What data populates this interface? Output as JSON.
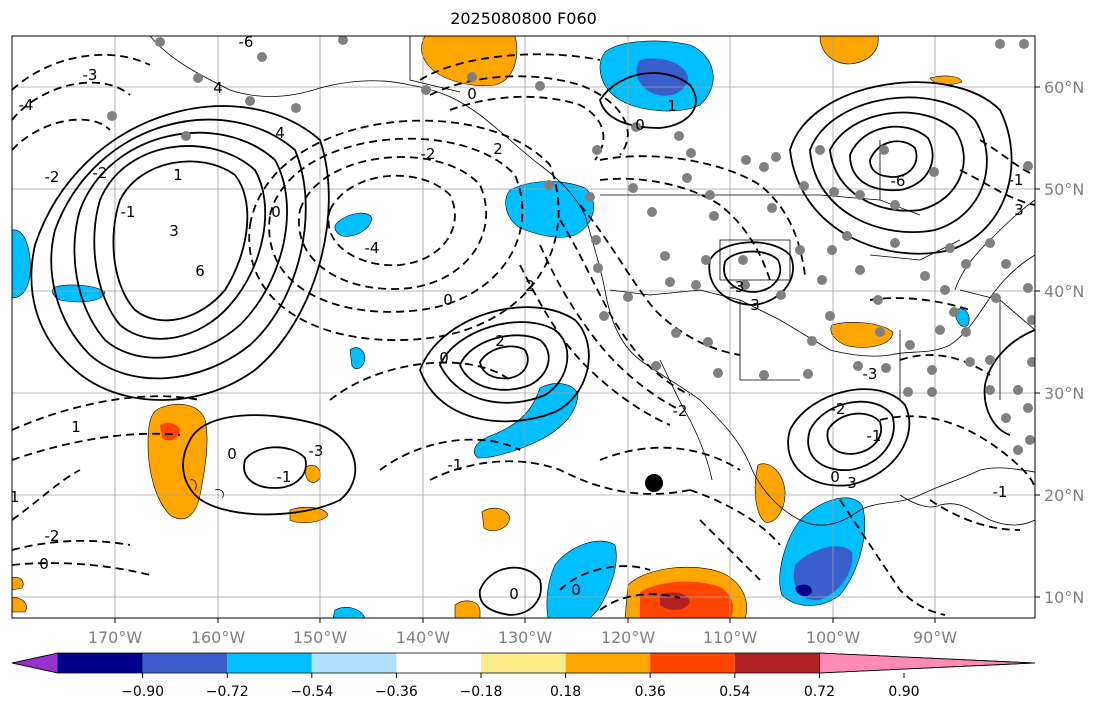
{
  "title": "2025080800 F060",
  "map": {
    "lon_range": [
      -180,
      -80
    ],
    "lat_range": [
      7.5,
      65
    ],
    "lon_labels": [
      "170°W",
      "160°W",
      "150°W",
      "140°W",
      "130°W",
      "120°W",
      "110°W",
      "100°W",
      "90°W"
    ],
    "lat_labels": [
      "60°N",
      "50°N",
      "40°N",
      "30°N",
      "20°N",
      "10°N"
    ],
    "grid": true,
    "contour_labels": [
      "-6",
      "-4",
      "4",
      "-3",
      "-2",
      "-2",
      "-1",
      "1",
      "3",
      "6",
      "4",
      "0",
      "-4",
      "-2",
      "0",
      "2",
      "2",
      "0",
      "-1",
      "-2",
      "-1",
      "-2",
      "0",
      "1",
      "2",
      "1",
      "0",
      "-1",
      "0",
      "-3",
      "0",
      "3",
      "-3",
      "-6",
      "-1",
      "3",
      "-3",
      "-2",
      "3",
      "-1",
      "0",
      "-1",
      "0",
      "0"
    ],
    "marker_location": {
      "lon": -117,
      "lat": 21
    }
  },
  "colorbar": {
    "tick_labels": [
      "−0.90",
      "−0.72",
      "−0.54",
      "−0.36",
      "−0.18",
      "0.18",
      "0.36",
      "0.54",
      "0.72",
      "0.90"
    ],
    "colors": [
      "#9932CC",
      "#00008B",
      "#3A5FCD",
      "#00BFFF",
      "#B0E2FF",
      "#FFFFFF",
      "#FFEC8B",
      "#FFA500",
      "#FF4500",
      "#B22222",
      "#FF8AB5"
    ]
  },
  "colors": {
    "contour": "#000000",
    "coastline": "#000000",
    "grid": "#a0a0a0",
    "station": "#808080",
    "marker": "#000000",
    "axis_label": "#808080"
  }
}
